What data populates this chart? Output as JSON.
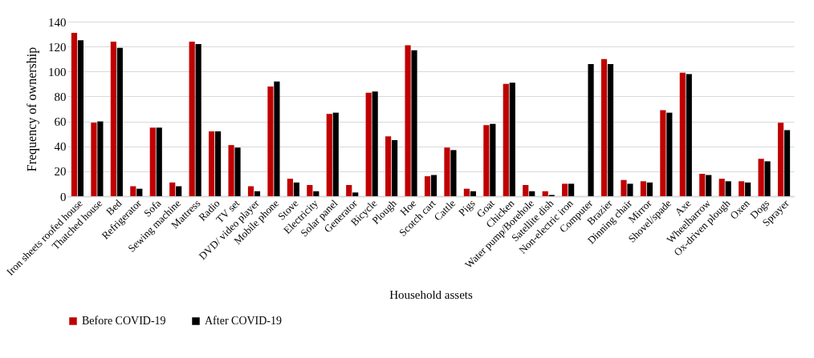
{
  "chart_data": {
    "type": "bar",
    "xlabel": "Household assets",
    "ylabel": "Frequency of ownership",
    "categories": [
      "Iron sheets roofed house",
      "Thatched house",
      "Bed",
      "Refrigerator",
      "Sofa",
      "Sewing machine",
      "Mattress",
      "Radio",
      "TV set",
      "DVD/ video player",
      "Mobile phone",
      "Stove",
      "Electricity",
      "Solar panel",
      "Generator",
      "Bicycle",
      "Plough",
      "Hoe",
      "Scotch cart",
      "Cattle",
      "Pigs",
      "Goat",
      "Chicken",
      "Water pump/Borehole",
      "Satellite dish",
      "Non-electric iron",
      "Computer",
      "Brazier",
      "Dinning chair",
      "Mirror",
      "Shovel/spade",
      "Axe",
      "Wheelbarrow",
      "Ox-driven plough",
      "Oxen",
      "Dogs",
      "Sprayer"
    ],
    "series": [
      {
        "name": "Before COVID-19",
        "color": "#c00000",
        "values": [
          131,
          59,
          124,
          8,
          55,
          11,
          124,
          52,
          41,
          8,
          88,
          14,
          9,
          66,
          9,
          83,
          48,
          121,
          16,
          39,
          6,
          57,
          90,
          9,
          4,
          10,
          0,
          110,
          13,
          12,
          69,
          99,
          18,
          14,
          12,
          30,
          59
        ]
      },
      {
        "name": "After COVID-19",
        "color": "#000000",
        "values": [
          125,
          60,
          119,
          6,
          55,
          8,
          122,
          52,
          39,
          4,
          92,
          11,
          4,
          67,
          3,
          84,
          45,
          117,
          17,
          37,
          4,
          58,
          91,
          4,
          1,
          10,
          106,
          106,
          10,
          11,
          67,
          98,
          17,
          12,
          11,
          28,
          53
        ]
      }
    ],
    "ylim": [
      0,
      140
    ],
    "yticks": [
      0,
      20,
      40,
      60,
      80,
      100,
      120,
      140
    ],
    "grid": "y",
    "legend": "bottom"
  }
}
